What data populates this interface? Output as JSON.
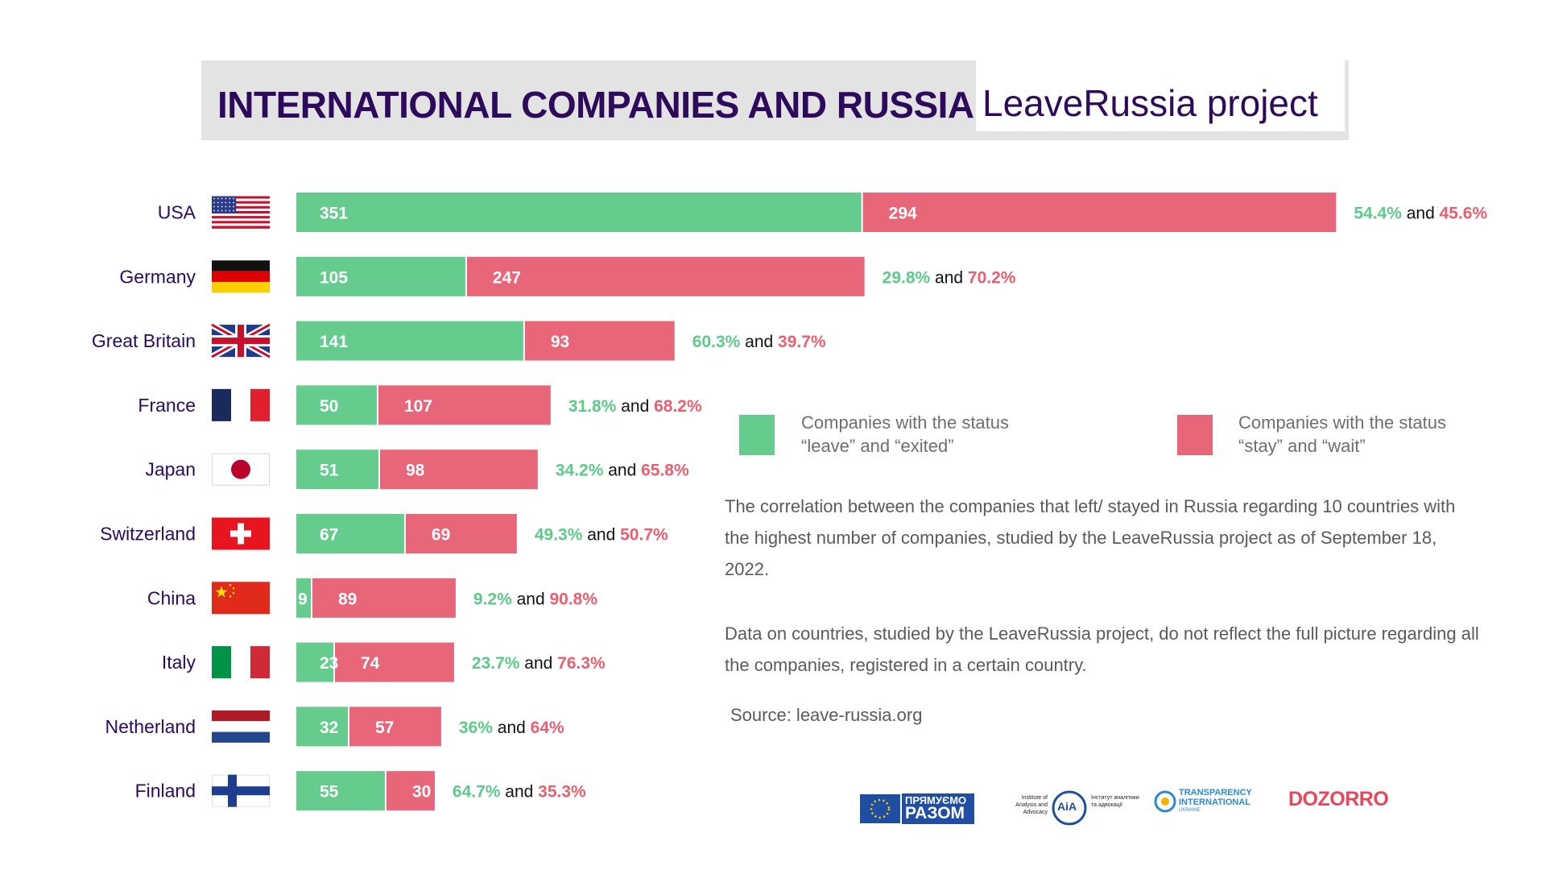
{
  "header": {
    "title_bold": "INTERNATIONAL COMPANIES AND RUSSIA:",
    "title_light": "LeaveRussia project"
  },
  "colors": {
    "leave": "#66cc8e",
    "stay": "#e8667a",
    "title_bg": "#e3e3e3",
    "text": "#2d0a5c"
  },
  "legend": {
    "leave_line1": "Companies with the status",
    "leave_line2": "“leave” and “exited”",
    "stay_line1": "Companies with the status",
    "stay_line2": "“stay” and “wait”"
  },
  "notes": {
    "p1": "The correlation between the companies that left/ stayed in Russia regarding 10 countries with the highest number of companies, studied by the LeaveRussia project as of September 18, 2022.",
    "p2": "Data on countries, studied by the LeaveRussia project, do not reflect the full picture regarding all the companies, registered in a certain country.",
    "source": "Source:  leave-russia.org"
  },
  "logos": {
    "pryamuemo_1": "ПРЯМУЄМО",
    "pryamuemo_2": "РАЗОМ",
    "iaa_left": "Institute of Analysis and Advocacy",
    "iaa_mark": "AiA",
    "iaa_right": "Інститут аналітики та адвокації",
    "ti_1": "TRANSPARENCY",
    "ti_2": "INTERNATIONAL",
    "ti_3": "UKRAINE",
    "dozorro": "DOZORRO"
  },
  "chart_data": {
    "type": "bar",
    "orientation": "horizontal",
    "stacked": true,
    "categories": [
      "USA",
      "Germany",
      "Great Britain",
      "France",
      "Japan",
      "Switzerland",
      "China",
      "Italy",
      "Netherland",
      "Finland"
    ],
    "series": [
      {
        "name": "Companies with the status “leave” and “exited”",
        "values": [
          351,
          105,
          141,
          50,
          51,
          67,
          9,
          23,
          32,
          55
        ]
      },
      {
        "name": "Companies with the status “stay” and “wait”",
        "values": [
          294,
          247,
          93,
          107,
          98,
          69,
          89,
          74,
          57,
          30
        ]
      }
    ],
    "percentages": [
      {
        "leave": "54.4%",
        "stay": "45.6%"
      },
      {
        "leave": "29.8%",
        "stay": "70.2%"
      },
      {
        "leave": "60.3%",
        "stay": "39.7%"
      },
      {
        "leave": "31.8%",
        "stay": "68.2%"
      },
      {
        "leave": "34.2%",
        "stay": "65.8%"
      },
      {
        "leave": "49.3%",
        "stay": "50.7%"
      },
      {
        "leave": "9.2%",
        "stay": "90.8%"
      },
      {
        "leave": "23.7%",
        "stay": "76.3%"
      },
      {
        "leave": "36%",
        "stay": "64%"
      },
      {
        "leave": "64.7%",
        "stay": "35.3%"
      }
    ],
    "connector": "and",
    "flags": [
      "usa-flag-icon",
      "germany-flag-icon",
      "great-britain-flag-icon",
      "france-flag-icon",
      "japan-flag-icon",
      "switzerland-flag-icon",
      "china-flag-icon",
      "italy-flag-icon",
      "netherlands-flag-icon",
      "finland-flag-icon"
    ]
  }
}
